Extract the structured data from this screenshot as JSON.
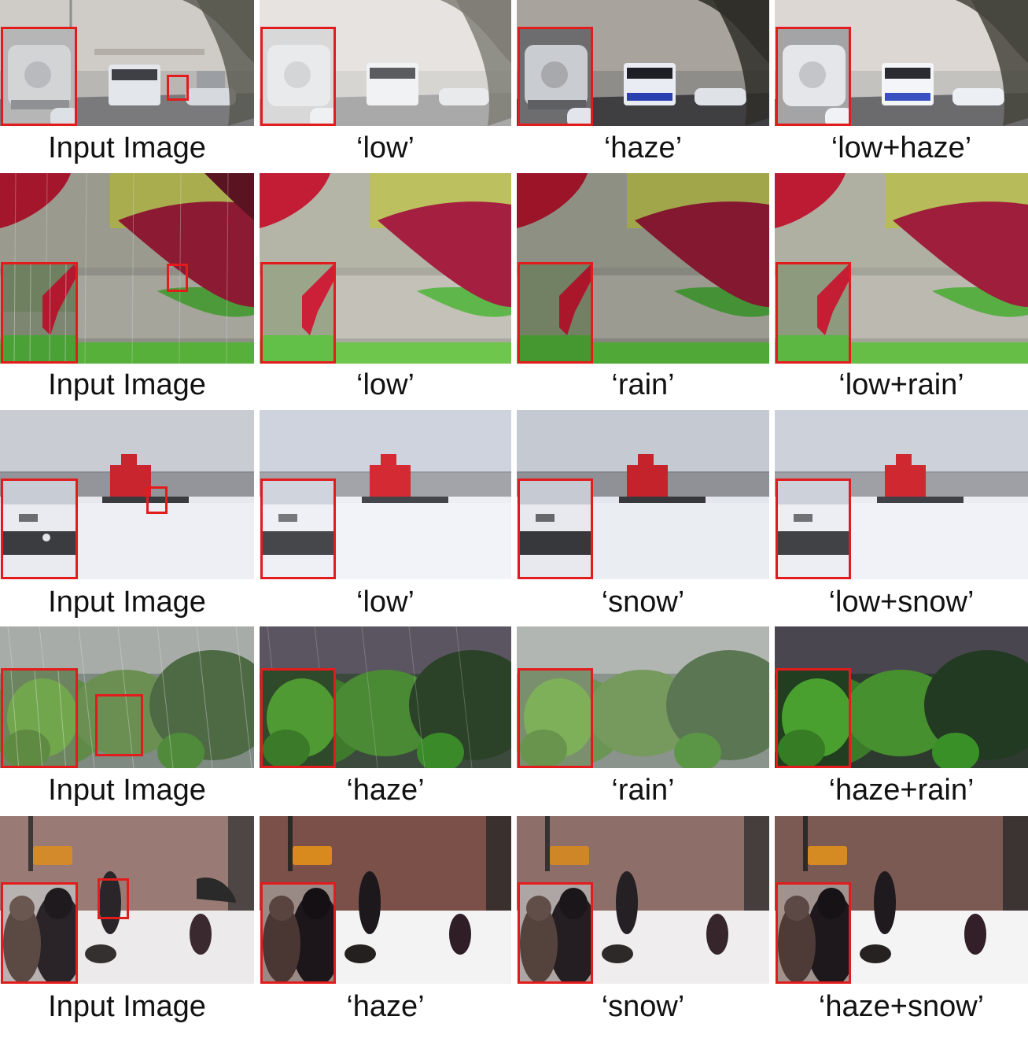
{
  "figure": {
    "rows": [
      {
        "scene": "street-haze",
        "captions": [
          "Input Image",
          "‘low’",
          "‘haze’",
          "‘low+haze’"
        ]
      },
      {
        "scene": "garden-rain",
        "captions": [
          "Input Image",
          "‘low’",
          "‘rain’",
          "‘low+rain’"
        ]
      },
      {
        "scene": "lighthouse-snow",
        "captions": [
          "Input Image",
          "‘low’",
          "‘snow’",
          "‘low+snow’"
        ]
      },
      {
        "scene": "forest-rain",
        "captions": [
          "Input Image",
          "‘haze’",
          "‘rain’",
          "‘haze+rain’"
        ]
      },
      {
        "scene": "city-snow",
        "captions": [
          "Input Image",
          "‘haze’",
          "‘snow’",
          "‘haze+snow’"
        ]
      }
    ],
    "highlight_color": "#e21c1c"
  }
}
